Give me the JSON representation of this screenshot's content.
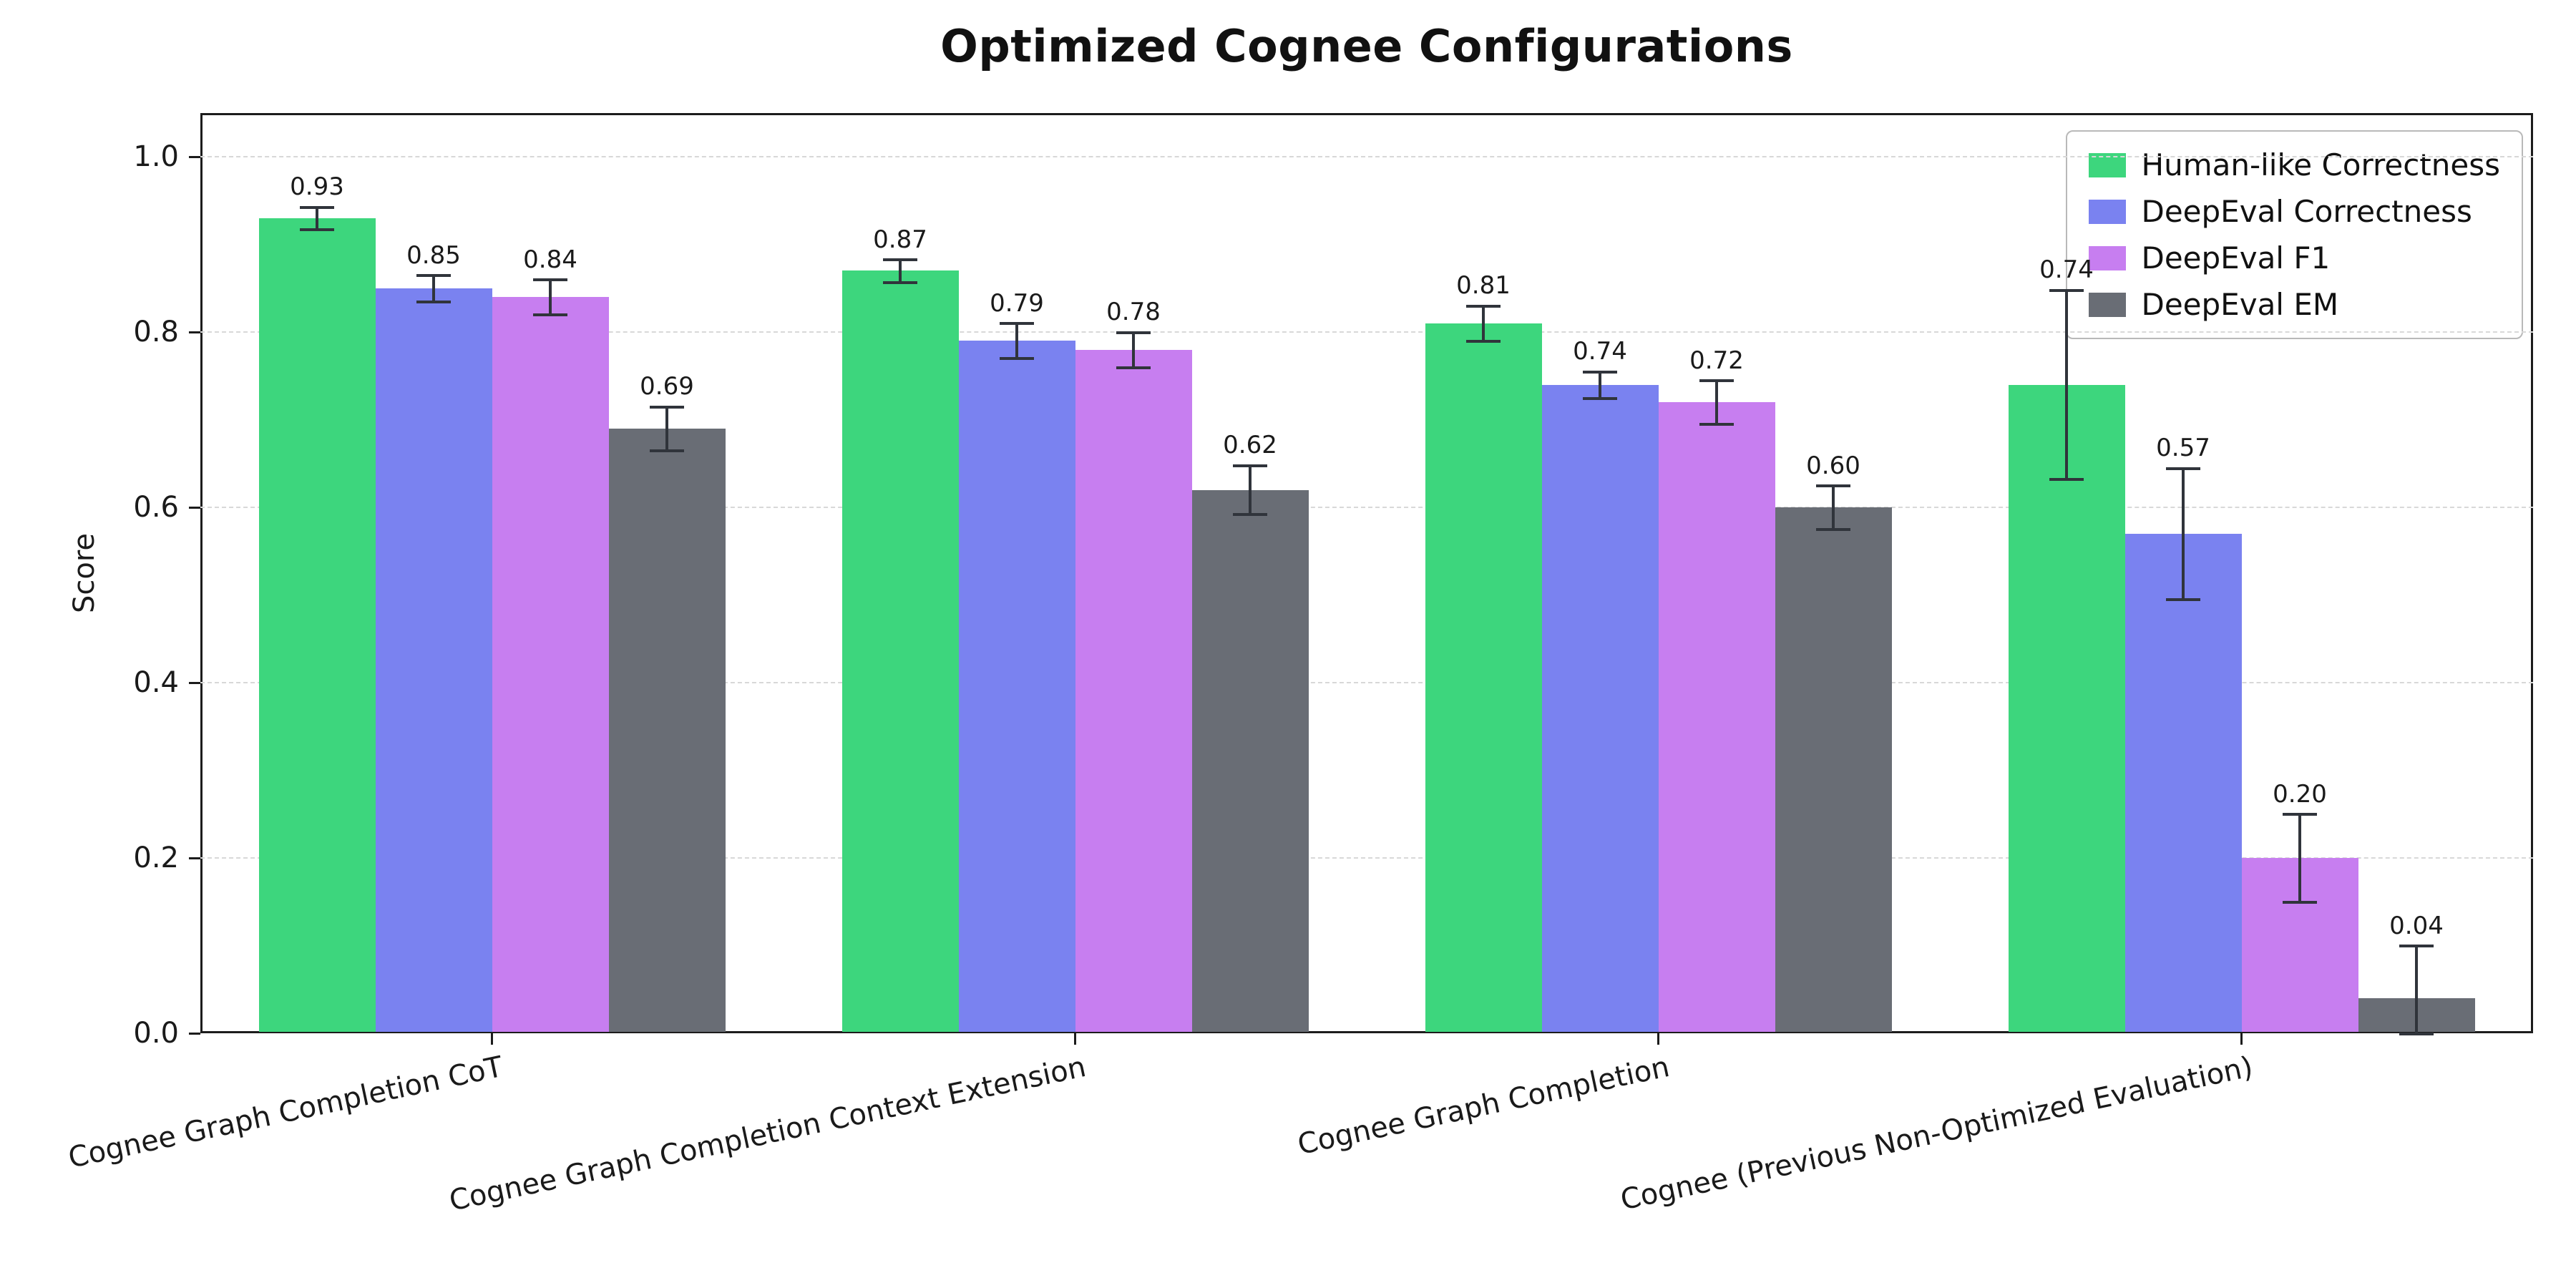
{
  "chart_data": {
    "type": "bar",
    "title": "Optimized Cognee Configurations",
    "xlabel": "",
    "ylabel": "Score",
    "categories": [
      "Cognee Graph Completion CoT",
      "Cognee Graph Completion Context Extension",
      "Cognee Graph Completion",
      "Cognee (Previous Non-Optimized Evaluation)"
    ],
    "series": [
      {
        "name": "Human-like Correctness",
        "color": "#3dd67d",
        "values": [
          0.93,
          0.87,
          0.81,
          0.74
        ],
        "errors": [
          0.013,
          0.013,
          0.02,
          0.108
        ]
      },
      {
        "name": "DeepEval Correctness",
        "color": "#7a82f0",
        "values": [
          0.85,
          0.79,
          0.74,
          0.57
        ],
        "errors": [
          0.015,
          0.02,
          0.015,
          0.075
        ]
      },
      {
        "name": "DeepEval F1",
        "color": "#c77ef0",
        "values": [
          0.84,
          0.78,
          0.72,
          0.2
        ],
        "errors": [
          0.02,
          0.02,
          0.025,
          0.05
        ]
      },
      {
        "name": "DeepEval EM",
        "color": "#696d75",
        "values": [
          0.69,
          0.62,
          0.6,
          0.04
        ],
        "errors": [
          0.025,
          0.028,
          0.025,
          0.06
        ]
      }
    ],
    "yticks": [
      0.0,
      0.2,
      0.4,
      0.6,
      0.8,
      1.0
    ],
    "ylim": [
      0,
      1.05
    ],
    "grid": true,
    "legend_position": "upper right",
    "error_bar_color": "#30343b"
  }
}
